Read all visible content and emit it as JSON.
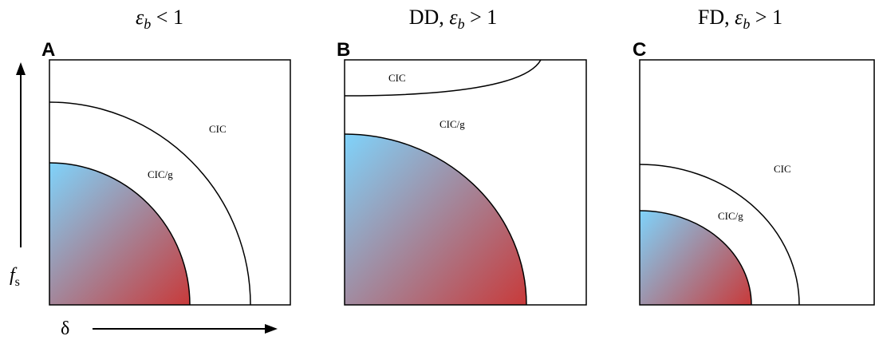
{
  "panels": [
    {
      "letter": "A",
      "title": {
        "prefix": "",
        "eps": "ε",
        "sub": "b",
        "rel": " < 1"
      },
      "region_outer": "CIC",
      "region_inner": "CIC/g"
    },
    {
      "letter": "B",
      "title": {
        "prefix": "DD, ",
        "eps": "ε",
        "sub": "b",
        "rel": " > 1"
      },
      "region_top": "CIC",
      "region_mid": "CIC/g"
    },
    {
      "letter": "C",
      "title": {
        "prefix": "FD, ",
        "eps": "ε",
        "sub": "b",
        "rel": " > 1"
      },
      "region_outer": "CIC",
      "region_inner": "CIC/g"
    }
  ],
  "axes": {
    "y_label": "f",
    "y_label_sub": "s",
    "x_label": "δ"
  },
  "colors": {
    "gradient_top_left": "#7fd3fb",
    "gradient_bottom_right": "#c83a3a",
    "line": "#000000"
  }
}
